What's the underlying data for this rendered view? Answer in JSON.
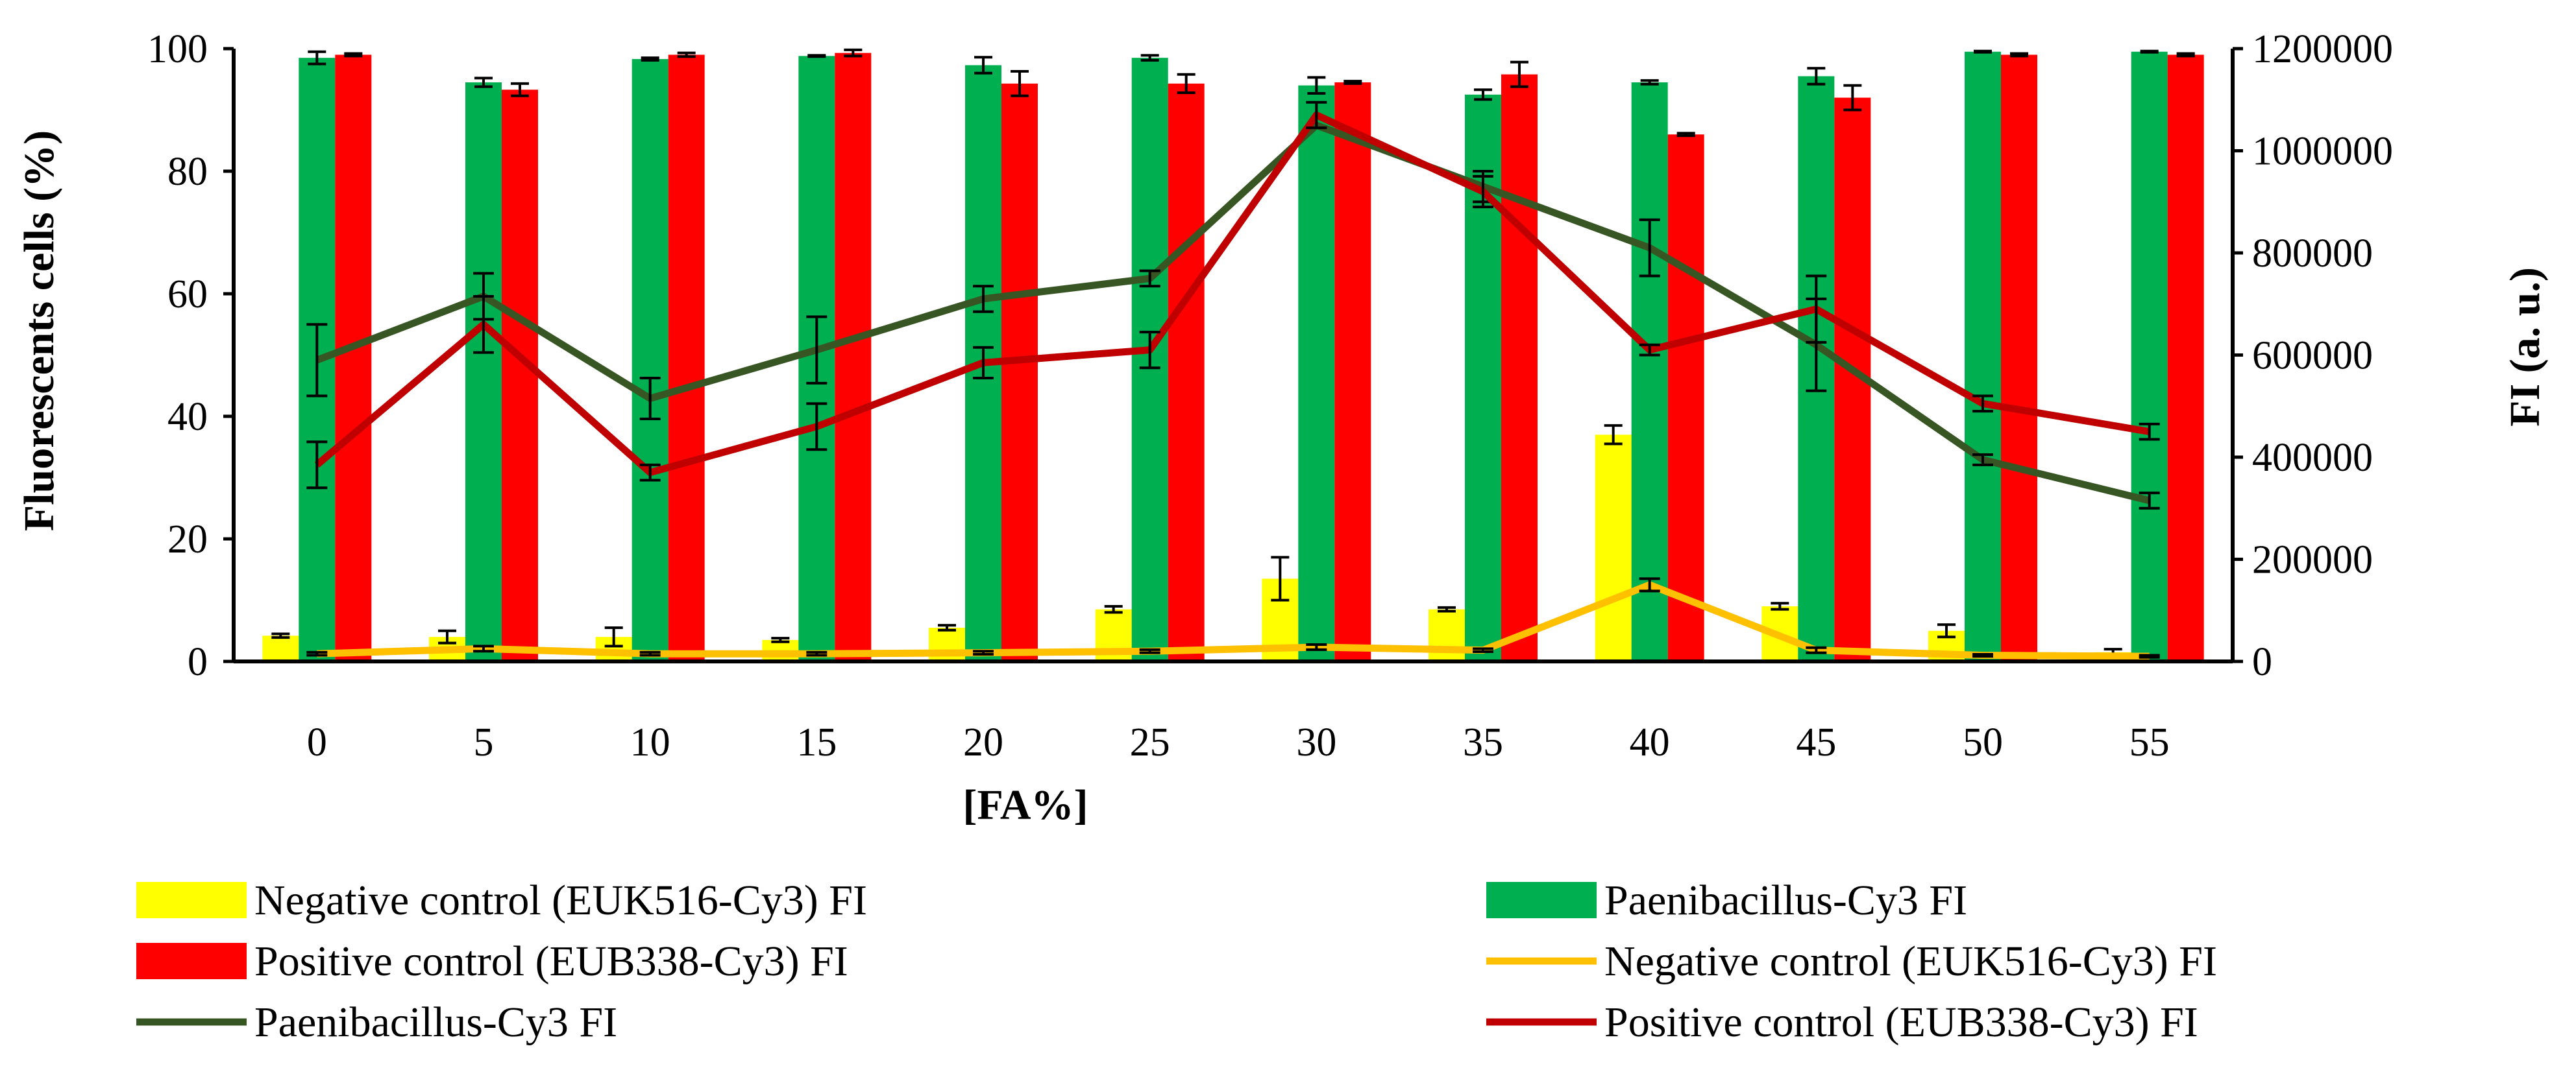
{
  "chart_data": {
    "type": "bar+line",
    "xlabel": "[FA%]",
    "ylabel_left": "Fluorescents cells (%)",
    "ylabel_right": "FI (a. u.)",
    "ylim_left": [
      0,
      100
    ],
    "ylim_right": [
      0,
      1200000
    ],
    "yticks_left": [
      "0",
      "20",
      "40",
      "60",
      "80",
      "100"
    ],
    "yticks_right": [
      "0",
      "200000",
      "400000",
      "600000",
      "800000",
      "1000000",
      "1200000"
    ],
    "categories": [
      "0",
      "5",
      "10",
      "15",
      "20",
      "25",
      "30",
      "35",
      "40",
      "45",
      "50",
      "55"
    ],
    "bar_series": [
      {
        "name": "Negative control (EUK516-Cy3)  FI",
        "color": "#ffff00",
        "values": [
          4.2,
          4.0,
          4.0,
          3.5,
          5.5,
          8.5,
          13.5,
          8.5,
          37.0,
          9.0,
          5.0,
          1.5
        ],
        "errors": [
          0.3,
          1.0,
          1.5,
          0.3,
          0.4,
          0.5,
          3.5,
          0.3,
          1.5,
          0.5,
          1.0,
          0.5
        ]
      },
      {
        "name": "Paenibacillus-Cy3 FI",
        "color": "#00b050",
        "values": [
          98.5,
          94.5,
          98.3,
          98.8,
          97.3,
          98.5,
          94.0,
          92.5,
          94.5,
          95.5,
          99.5,
          99.5
        ],
        "errors": [
          1.0,
          0.7,
          0.2,
          0.1,
          1.3,
          0.4,
          1.3,
          0.8,
          0.3,
          1.3,
          0.1,
          0.1
        ]
      },
      {
        "name": "Positive control (EUB338-Cy3) FI",
        "color": "#ff0000",
        "values": [
          99.0,
          93.3,
          99.0,
          99.3,
          94.3,
          94.3,
          94.5,
          95.8,
          86.0,
          92.0,
          99.0,
          99.0
        ],
        "errors": [
          0.2,
          1.0,
          0.3,
          0.5,
          2.0,
          1.5,
          0.2,
          2.0,
          0.2,
          2.0,
          0.2,
          0.2
        ]
      }
    ],
    "line_series": [
      {
        "name": "Negative control (EUK516-Cy3)  FI",
        "color": "#ffc000",
        "values": [
          15000,
          25000,
          15000,
          15000,
          17000,
          20000,
          28000,
          22000,
          150000,
          22000,
          12000,
          10000
        ],
        "errors": [
          3000,
          5000,
          3000,
          3000,
          3000,
          3000,
          5000,
          3000,
          12000,
          5000,
          2000,
          2000
        ]
      },
      {
        "name": "Paenibacillus-Cy3 FI",
        "color": "#375623",
        "values": [
          590000,
          715000,
          515000,
          610000,
          710000,
          750000,
          1050000,
          930000,
          810000,
          620000,
          395000,
          315000
        ],
        "errors": [
          70000,
          45000,
          40000,
          65000,
          25000,
          15000,
          0,
          30000,
          55000,
          90000,
          10000,
          15000
        ]
      },
      {
        "name": "Positive control (EUB338-Cy3) FI",
        "color": "#c00000",
        "values": [
          385000,
          660000,
          370000,
          460000,
          585000,
          610000,
          1070000,
          920000,
          610000,
          690000,
          505000,
          450000
        ],
        "errors": [
          45000,
          55000,
          15000,
          45000,
          30000,
          35000,
          25000,
          30000,
          10000,
          65000,
          15000,
          15000
        ]
      }
    ],
    "legend": [
      {
        "label": "Negative control (EUK516-Cy3)  FI",
        "kind": "bar",
        "color": "#ffff00"
      },
      {
        "label": "Paenibacillus-Cy3 FI",
        "kind": "bar",
        "color": "#00b050"
      },
      {
        "label": "Positive control (EUB338-Cy3) FI",
        "kind": "bar",
        "color": "#ff0000"
      },
      {
        "label": "Negative control (EUK516-Cy3)  FI",
        "kind": "line",
        "color": "#ffc000"
      },
      {
        "label": "Paenibacillus-Cy3 FI",
        "kind": "line",
        "color": "#375623"
      },
      {
        "label": "Positive control (EUB338-Cy3) FI",
        "kind": "line",
        "color": "#c00000"
      }
    ],
    "legend_position": "bottom",
    "grid": false
  }
}
